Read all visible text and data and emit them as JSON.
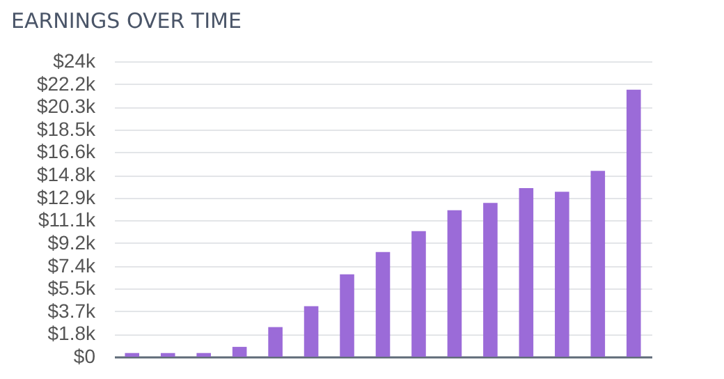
{
  "chart_data": {
    "type": "bar",
    "title": "EARNINGS OVER TIME",
    "categories": [
      null,
      null,
      null,
      null,
      null,
      null,
      null,
      null,
      null,
      null,
      null,
      null,
      null,
      null,
      null
    ],
    "values": [
      300,
      300,
      300,
      800,
      2400,
      4100,
      6700,
      8500,
      10200,
      11900,
      12500,
      13700,
      13400,
      15100,
      21700
    ],
    "color": "#9b6bd8",
    "ylim": [
      0,
      24000
    ],
    "yticks": [
      {
        "value": 0,
        "label": "$0"
      },
      {
        "value": 1846.15,
        "label": "$1.8k"
      },
      {
        "value": 3692.31,
        "label": "$3.7k"
      },
      {
        "value": 5538.46,
        "label": "$5.5k"
      },
      {
        "value": 7384.62,
        "label": "$7.4k"
      },
      {
        "value": 9230.77,
        "label": "$9.2k"
      },
      {
        "value": 11076.92,
        "label": "$11.1k"
      },
      {
        "value": 12923.08,
        "label": "$12.9k"
      },
      {
        "value": 14769.23,
        "label": "$14.8k"
      },
      {
        "value": 16615.38,
        "label": "$16.6k"
      },
      {
        "value": 18461.54,
        "label": "$18.5k"
      },
      {
        "value": 20307.69,
        "label": "$20.3k"
      },
      {
        "value": 22153.85,
        "label": "$22.2k"
      },
      {
        "value": 24000,
        "label": "$24k"
      }
    ],
    "grid": "y",
    "tick_labels": "y"
  }
}
